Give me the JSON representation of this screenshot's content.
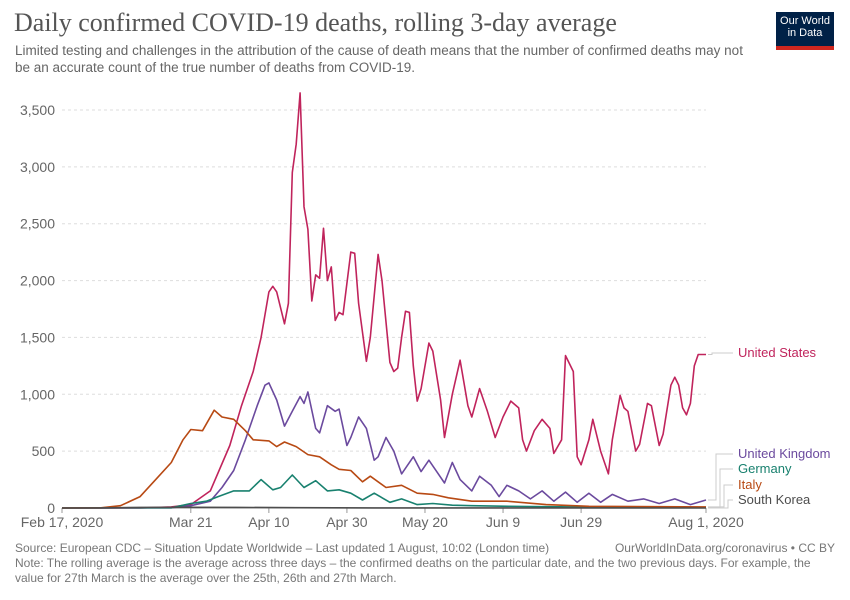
{
  "header": {
    "title": "Daily confirmed COVID-19 deaths, rolling 3-day average",
    "subtitle": "Limited testing and challenges in the attribution of the cause of death means that the number of confirmed deaths may not be an accurate count of the true number of deaths from COVID-19.",
    "logo_line1": "Our World",
    "logo_line2": "in Data"
  },
  "footer": {
    "source": "Source: European CDC – Situation Update Worldwide – Last updated 1 August, 10:02 (London time)",
    "url": "OurWorldInData.org/coronavirus • CC BY",
    "note": "Note: The rolling average is the average across three days – the confirmed deaths on the particular date, and the two previous days. For example, the value for 27th March is the average over the 25th, 26th and 27th March."
  },
  "chart_data": {
    "type": "line",
    "title": "Daily confirmed COVID-19 deaths, rolling 3-day average",
    "x_unit": "days since Feb 17, 2020",
    "xlim": [
      0,
      165
    ],
    "ylim": [
      0,
      3700
    ],
    "yticks": [
      0,
      500,
      1000,
      1500,
      2000,
      2500,
      3000,
      3500
    ],
    "ytick_labels": [
      "0",
      "500",
      "1,000",
      "1,500",
      "2,000",
      "2,500",
      "3,000",
      "3,500"
    ],
    "xticks": [
      0,
      33,
      53,
      73,
      93,
      113,
      133,
      165
    ],
    "xtick_labels": [
      "Feb 17, 2020",
      "Mar 21",
      "Apr 10",
      "Apr 30",
      "May 20",
      "Jun 9",
      "Jun 29",
      "Aug 1, 2020"
    ],
    "grid": true,
    "legend_placement": "right, end of lines",
    "series": [
      {
        "name": "United States",
        "color": "#c0245c",
        "points": [
          [
            0,
            0
          ],
          [
            20,
            0
          ],
          [
            28,
            10
          ],
          [
            33,
            30
          ],
          [
            38,
            150
          ],
          [
            43,
            550
          ],
          [
            46,
            900
          ],
          [
            49,
            1200
          ],
          [
            51,
            1500
          ],
          [
            53,
            1900
          ],
          [
            54,
            1950
          ],
          [
            55,
            1900
          ],
          [
            57,
            1620
          ],
          [
            58,
            1800
          ],
          [
            59,
            2950
          ],
          [
            60,
            3200
          ],
          [
            61,
            3650
          ],
          [
            62,
            2650
          ],
          [
            63,
            2450
          ],
          [
            64,
            1820
          ],
          [
            65,
            2050
          ],
          [
            66,
            2020
          ],
          [
            67,
            2460
          ],
          [
            68,
            2000
          ],
          [
            69,
            2120
          ],
          [
            70,
            1650
          ],
          [
            71,
            1720
          ],
          [
            72,
            1700
          ],
          [
            74,
            2250
          ],
          [
            75,
            2240
          ],
          [
            76,
            1800
          ],
          [
            78,
            1290
          ],
          [
            79,
            1500
          ],
          [
            81,
            2230
          ],
          [
            82,
            2000
          ],
          [
            84,
            1280
          ],
          [
            85,
            1200
          ],
          [
            86,
            1230
          ],
          [
            87,
            1500
          ],
          [
            88,
            1730
          ],
          [
            89,
            1720
          ],
          [
            90,
            1250
          ],
          [
            91,
            940
          ],
          [
            92,
            1050
          ],
          [
            94,
            1450
          ],
          [
            95,
            1380
          ],
          [
            97,
            950
          ],
          [
            98,
            620
          ],
          [
            100,
            1000
          ],
          [
            102,
            1300
          ],
          [
            104,
            900
          ],
          [
            105,
            800
          ],
          [
            107,
            1050
          ],
          [
            109,
            850
          ],
          [
            111,
            620
          ],
          [
            113,
            800
          ],
          [
            115,
            940
          ],
          [
            117,
            880
          ],
          [
            118,
            600
          ],
          [
            119,
            500
          ],
          [
            121,
            680
          ],
          [
            123,
            780
          ],
          [
            125,
            700
          ],
          [
            126,
            480
          ],
          [
            128,
            600
          ],
          [
            129,
            1340
          ],
          [
            131,
            1200
          ],
          [
            132,
            450
          ],
          [
            133,
            380
          ],
          [
            135,
            600
          ],
          [
            136,
            780
          ],
          [
            138,
            500
          ],
          [
            140,
            300
          ],
          [
            141,
            600
          ],
          [
            143,
            990
          ],
          [
            144,
            880
          ],
          [
            145,
            850
          ],
          [
            147,
            500
          ],
          [
            148,
            560
          ],
          [
            150,
            920
          ],
          [
            151,
            900
          ],
          [
            153,
            550
          ],
          [
            154,
            650
          ],
          [
            156,
            1080
          ],
          [
            157,
            1150
          ],
          [
            158,
            1080
          ],
          [
            159,
            880
          ],
          [
            160,
            820
          ],
          [
            161,
            920
          ],
          [
            162,
            1250
          ],
          [
            163,
            1350
          ],
          [
            165,
            1350
          ]
        ]
      },
      {
        "name": "United Kingdom",
        "color": "#6b4a9e",
        "points": [
          [
            0,
            0
          ],
          [
            28,
            2
          ],
          [
            33,
            20
          ],
          [
            38,
            60
          ],
          [
            41,
            180
          ],
          [
            44,
            330
          ],
          [
            47,
            600
          ],
          [
            50,
            900
          ],
          [
            52,
            1080
          ],
          [
            53,
            1100
          ],
          [
            55,
            950
          ],
          [
            57,
            720
          ],
          [
            59,
            850
          ],
          [
            61,
            980
          ],
          [
            62,
            920
          ],
          [
            63,
            1020
          ],
          [
            65,
            700
          ],
          [
            66,
            660
          ],
          [
            68,
            900
          ],
          [
            70,
            850
          ],
          [
            71,
            870
          ],
          [
            73,
            550
          ],
          [
            74,
            620
          ],
          [
            76,
            800
          ],
          [
            78,
            700
          ],
          [
            80,
            420
          ],
          [
            81,
            450
          ],
          [
            83,
            620
          ],
          [
            85,
            500
          ],
          [
            87,
            300
          ],
          [
            90,
            450
          ],
          [
            92,
            320
          ],
          [
            94,
            420
          ],
          [
            96,
            320
          ],
          [
            98,
            220
          ],
          [
            100,
            400
          ],
          [
            102,
            250
          ],
          [
            105,
            150
          ],
          [
            107,
            280
          ],
          [
            110,
            200
          ],
          [
            112,
            100
          ],
          [
            114,
            200
          ],
          [
            117,
            150
          ],
          [
            120,
            80
          ],
          [
            123,
            150
          ],
          [
            126,
            60
          ],
          [
            129,
            140
          ],
          [
            132,
            50
          ],
          [
            135,
            130
          ],
          [
            138,
            50
          ],
          [
            141,
            120
          ],
          [
            145,
            60
          ],
          [
            149,
            80
          ],
          [
            153,
            40
          ],
          [
            157,
            80
          ],
          [
            161,
            30
          ],
          [
            165,
            70
          ]
        ]
      },
      {
        "name": "Germany",
        "color": "#19816f",
        "points": [
          [
            0,
            0
          ],
          [
            28,
            2
          ],
          [
            33,
            40
          ],
          [
            37,
            60
          ],
          [
            40,
            100
          ],
          [
            44,
            150
          ],
          [
            48,
            150
          ],
          [
            51,
            250
          ],
          [
            54,
            160
          ],
          [
            56,
            180
          ],
          [
            59,
            290
          ],
          [
            62,
            180
          ],
          [
            65,
            240
          ],
          [
            68,
            150
          ],
          [
            71,
            160
          ],
          [
            74,
            130
          ],
          [
            77,
            70
          ],
          [
            80,
            130
          ],
          [
            84,
            50
          ],
          [
            87,
            80
          ],
          [
            91,
            30
          ],
          [
            95,
            40
          ],
          [
            100,
            25
          ],
          [
            105,
            20
          ],
          [
            120,
            12
          ],
          [
            135,
            8
          ],
          [
            165,
            5
          ]
        ]
      },
      {
        "name": "Italy",
        "color": "#b84a14",
        "points": [
          [
            0,
            0
          ],
          [
            10,
            2
          ],
          [
            15,
            20
          ],
          [
            20,
            100
          ],
          [
            24,
            250
          ],
          [
            28,
            400
          ],
          [
            31,
            600
          ],
          [
            33,
            690
          ],
          [
            36,
            680
          ],
          [
            39,
            860
          ],
          [
            41,
            800
          ],
          [
            44,
            780
          ],
          [
            47,
            680
          ],
          [
            49,
            600
          ],
          [
            53,
            590
          ],
          [
            55,
            540
          ],
          [
            57,
            580
          ],
          [
            60,
            540
          ],
          [
            63,
            470
          ],
          [
            66,
            450
          ],
          [
            69,
            380
          ],
          [
            71,
            340
          ],
          [
            74,
            330
          ],
          [
            77,
            230
          ],
          [
            79,
            280
          ],
          [
            83,
            180
          ],
          [
            87,
            200
          ],
          [
            91,
            130
          ],
          [
            95,
            120
          ],
          [
            99,
            90
          ],
          [
            105,
            60
          ],
          [
            114,
            60
          ],
          [
            124,
            30
          ],
          [
            135,
            15
          ],
          [
            165,
            10
          ]
        ]
      },
      {
        "name": "South Korea",
        "color": "#4d4d4d",
        "points": [
          [
            0,
            0
          ],
          [
            10,
            1
          ],
          [
            20,
            5
          ],
          [
            30,
            6
          ],
          [
            45,
            5
          ],
          [
            60,
            3
          ],
          [
            80,
            1
          ],
          [
            165,
            0
          ]
        ]
      }
    ]
  }
}
